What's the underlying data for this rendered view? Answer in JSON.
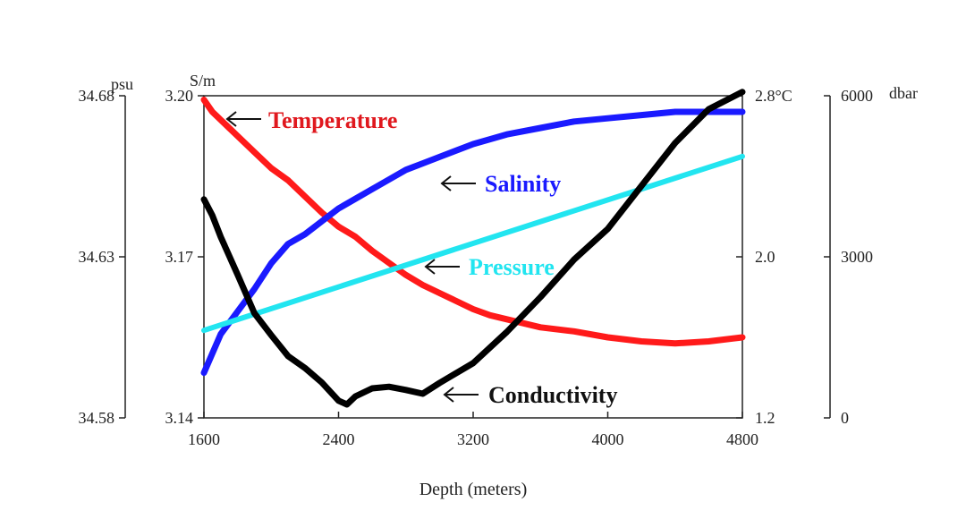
{
  "chart_data": {
    "type": "line",
    "title": "",
    "xlabel": "Depth (meters)",
    "xlim": [
      1600,
      4800
    ],
    "x_ticks": [
      1600,
      2400,
      3200,
      4000,
      4800
    ],
    "x_tick_labels": [
      "1600",
      "2400",
      "3200",
      "4000",
      "4800"
    ],
    "axes": [
      {
        "id": "salinity",
        "unit": "psu",
        "side": "left-outer",
        "range": [
          34.58,
          34.68
        ],
        "ticks": [
          34.58,
          34.63,
          34.68
        ],
        "tick_labels": [
          "34.58",
          "34.63",
          "34.68"
        ]
      },
      {
        "id": "conductivity",
        "unit": "S/m",
        "side": "left-inner",
        "range": [
          3.14,
          3.2
        ],
        "ticks": [
          3.14,
          3.17,
          3.2
        ],
        "tick_labels": [
          "3.14",
          "3.17",
          "3.20"
        ]
      },
      {
        "id": "temperature",
        "unit": "",
        "side": "right-inner",
        "range": [
          1.2,
          2.8
        ],
        "ticks": [
          1.2,
          2.0,
          2.8
        ],
        "tick_labels": [
          "1.2",
          "2.0",
          "2.8°C"
        ]
      },
      {
        "id": "pressure",
        "unit": "dbar",
        "side": "right-outer",
        "range": [
          0,
          6000
        ],
        "ticks": [
          0,
          3000,
          6000
        ],
        "tick_labels": [
          "0",
          "3000",
          "6000"
        ]
      }
    ],
    "series": [
      {
        "name": "Temperature",
        "axis": "temperature",
        "color": "#ff1a1a",
        "x": [
          1600,
          1650,
          1700,
          1800,
          1900,
          2000,
          2100,
          2200,
          2300,
          2400,
          2500,
          2600,
          2700,
          2800,
          2900,
          3000,
          3100,
          3200,
          3300,
          3400,
          3500,
          3600,
          3800,
          4000,
          4200,
          4400,
          4600,
          4800
        ],
        "values": [
          2.78,
          2.72,
          2.68,
          2.6,
          2.52,
          2.44,
          2.38,
          2.3,
          2.22,
          2.15,
          2.1,
          2.03,
          1.97,
          1.91,
          1.86,
          1.82,
          1.78,
          1.74,
          1.71,
          1.69,
          1.67,
          1.65,
          1.63,
          1.6,
          1.58,
          1.57,
          1.58,
          1.6
        ]
      },
      {
        "name": "Salinity",
        "axis": "salinity",
        "color": "#1a1aff",
        "x": [
          1600,
          1650,
          1700,
          1800,
          1900,
          2000,
          2100,
          2200,
          2300,
          2400,
          2500,
          2600,
          2700,
          2800,
          2900,
          3000,
          3200,
          3400,
          3600,
          3800,
          4000,
          4200,
          4400,
          4600,
          4800
        ],
        "values": [
          34.594,
          34.6,
          34.606,
          34.613,
          34.62,
          34.628,
          34.634,
          34.637,
          34.641,
          34.645,
          34.648,
          34.651,
          34.654,
          34.657,
          34.659,
          34.661,
          34.665,
          34.668,
          34.67,
          34.672,
          34.673,
          34.674,
          34.675,
          34.675,
          34.675
        ]
      },
      {
        "name": "Pressure",
        "axis": "pressure",
        "color": "#22e5f0",
        "x": [
          1600,
          4800
        ],
        "values": [
          1630,
          4870
        ]
      },
      {
        "name": "Conductivity",
        "axis": "conductivity",
        "color": "#000000",
        "x": [
          1600,
          1650,
          1700,
          1800,
          1900,
          2000,
          2100,
          2200,
          2300,
          2400,
          2450,
          2500,
          2600,
          2700,
          2800,
          2900,
          3000,
          3200,
          3400,
          3600,
          3800,
          4000,
          4200,
          4400,
          4600,
          4800
        ],
        "values": [
          3.1807,
          3.1777,
          3.1737,
          3.1667,
          3.1595,
          3.1554,
          3.1515,
          3.1493,
          3.1466,
          3.1432,
          3.1425,
          3.144,
          3.1455,
          3.1458,
          3.1452,
          3.1445,
          3.1465,
          3.1502,
          3.156,
          3.1625,
          3.1695,
          3.1752,
          3.1832,
          3.1912,
          3.1975,
          3.2007
        ]
      }
    ],
    "annotations": [
      {
        "text": "Temperature",
        "series": "Temperature",
        "color": "#e0181e"
      },
      {
        "text": "Salinity",
        "series": "Salinity",
        "color": "#1a1aff"
      },
      {
        "text": "Pressure",
        "series": "Pressure",
        "color": "#22e5f0"
      },
      {
        "text": "Conductivity",
        "series": "Conductivity",
        "color": "#111111"
      }
    ],
    "grid": false,
    "legend": "inline-arrows"
  }
}
